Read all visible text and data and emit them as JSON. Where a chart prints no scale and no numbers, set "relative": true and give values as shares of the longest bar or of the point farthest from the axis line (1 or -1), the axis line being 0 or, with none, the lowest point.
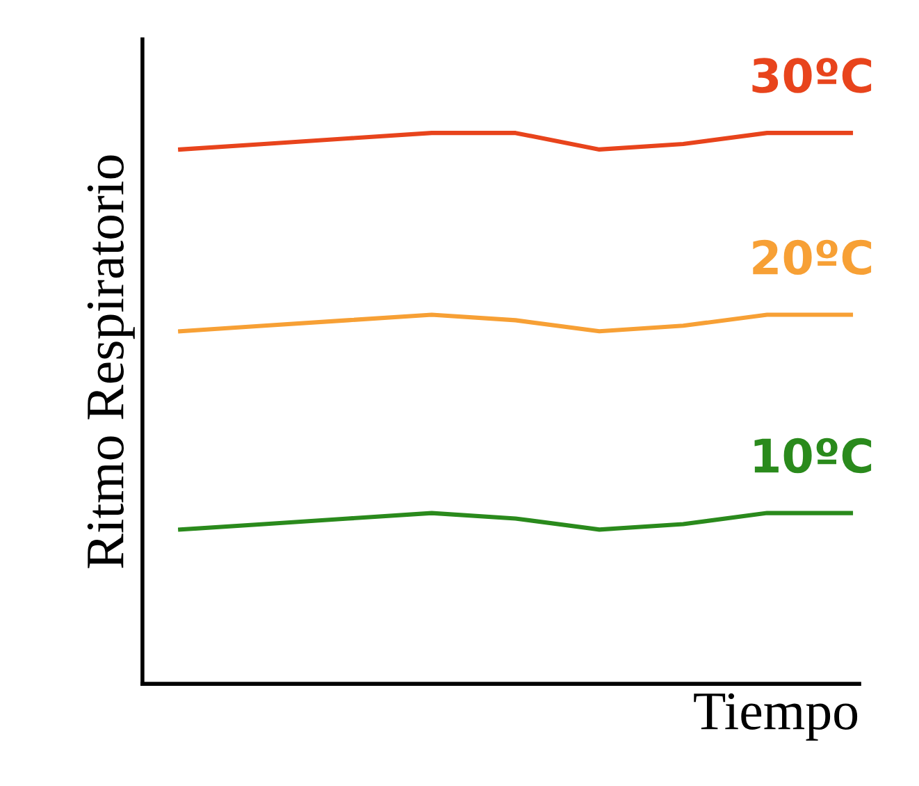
{
  "chart_data": {
    "type": "line",
    "relative": true,
    "xlabel": "Tiempo",
    "ylabel": "Ritmo Respiratorio",
    "categories": [
      null,
      null,
      null,
      null,
      null,
      null,
      null,
      null,
      null
    ],
    "series": [
      {
        "name": "30ºC",
        "color": "#e8441c",
        "values": [
          0.97,
          0.98,
          0.99,
          1.0,
          1.0,
          0.97,
          0.98,
          1.0,
          1.0
        ]
      },
      {
        "name": "20ºC",
        "color": "#f7a035",
        "values": [
          0.64,
          0.65,
          0.66,
          0.67,
          0.66,
          0.64,
          0.65,
          0.67,
          0.67
        ]
      },
      {
        "name": "10ºC",
        "color": "#2a8a1c",
        "values": [
          0.28,
          0.29,
          0.3,
          0.31,
          0.3,
          0.28,
          0.29,
          0.31,
          0.31
        ]
      }
    ],
    "legend": false,
    "marker": "none",
    "line_style": "solid"
  }
}
